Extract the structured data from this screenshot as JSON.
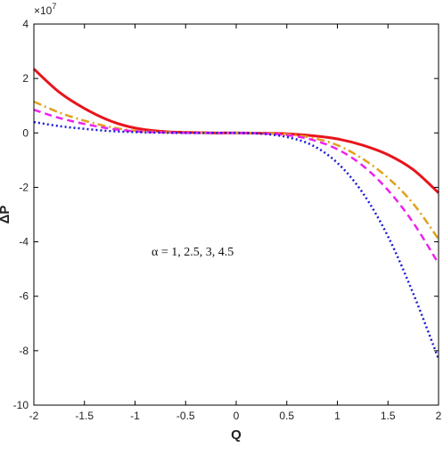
{
  "chart_data": {
    "type": "line",
    "title": "",
    "xlabel": "Q",
    "ylabel": "ΔP",
    "y_exponent_label": "×10",
    "y_exponent_power": "7",
    "xlim": [
      -2,
      2
    ],
    "ylim": [
      -10,
      4
    ],
    "x_ticks": [
      "-2",
      "-1.5",
      "-1",
      "-0.5",
      "0",
      "0.5",
      "1",
      "1.5",
      "2"
    ],
    "y_ticks": [
      "4",
      "2",
      "0",
      "-2",
      "-4",
      "-6",
      "-8",
      "-10"
    ],
    "grid": false,
    "annotation": "α = 1, 2.5, 3, 4.5",
    "x": [
      -2,
      -1.75,
      -1.5,
      -1.25,
      -1,
      -0.75,
      -0.5,
      -0.25,
      0,
      0.25,
      0.5,
      0.75,
      1,
      1.25,
      1.5,
      1.75,
      2
    ],
    "series": [
      {
        "color": "#e8141c",
        "dash": "solid",
        "values": [
          2.35,
          1.5,
          0.9,
          0.45,
          0.18,
          0.06,
          0.02,
          0.0,
          0.0,
          -0.01,
          -0.03,
          -0.1,
          -0.22,
          -0.45,
          -0.8,
          -1.35,
          -2.2
        ]
      },
      {
        "color": "#e0a21c",
        "dash": "dashdot",
        "values": [
          1.15,
          0.75,
          0.45,
          0.22,
          0.08,
          0.03,
          0.01,
          0.0,
          0.0,
          -0.01,
          -0.05,
          -0.18,
          -0.45,
          -0.95,
          -1.65,
          -2.6,
          -3.9
        ]
      },
      {
        "color": "#ee22ee",
        "dash": "dashed",
        "values": [
          0.85,
          0.55,
          0.33,
          0.16,
          0.06,
          0.02,
          0.0,
          0.0,
          0.0,
          -0.02,
          -0.08,
          -0.25,
          -0.6,
          -1.2,
          -2.1,
          -3.3,
          -4.8
        ]
      },
      {
        "color": "#1a1ad6",
        "dash": "dotted",
        "values": [
          0.4,
          0.25,
          0.15,
          0.07,
          0.03,
          0.01,
          0.0,
          0.0,
          0.0,
          -0.03,
          -0.15,
          -0.45,
          -1.1,
          -2.2,
          -3.8,
          -5.9,
          -8.3
        ]
      }
    ]
  }
}
